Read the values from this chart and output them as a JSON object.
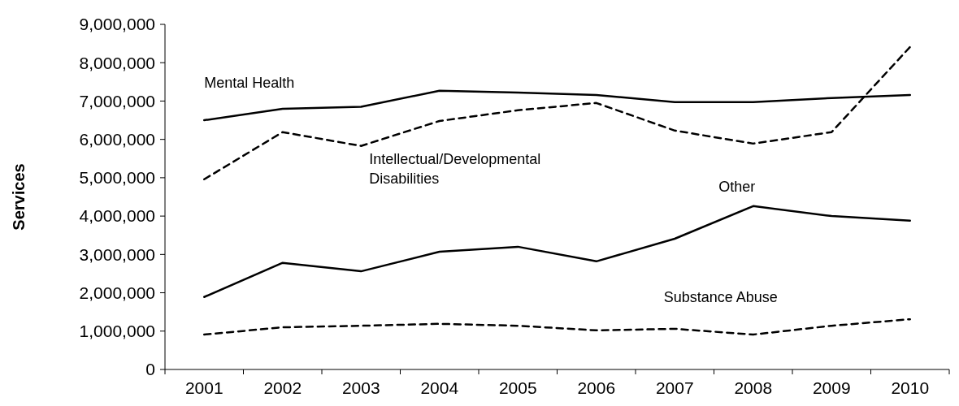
{
  "chart_data": {
    "type": "line",
    "ylabel": "Services",
    "categories": [
      "2001",
      "2002",
      "2003",
      "2004",
      "2005",
      "2006",
      "2007",
      "2008",
      "2009",
      "2010"
    ],
    "ylim": [
      0,
      9000000
    ],
    "yticks": [
      {
        "value": 0,
        "label": "0"
      },
      {
        "value": 1000000,
        "label": "1,000,000"
      },
      {
        "value": 2000000,
        "label": "2,000,000"
      },
      {
        "value": 3000000,
        "label": "3,000,000"
      },
      {
        "value": 4000000,
        "label": "4,000,000"
      },
      {
        "value": 5000000,
        "label": "5,000,000"
      },
      {
        "value": 6000000,
        "label": "6,000,000"
      },
      {
        "value": 7000000,
        "label": "7,000,000"
      },
      {
        "value": 8000000,
        "label": "8,000,000"
      },
      {
        "value": 9000000,
        "label": "9,000,000"
      }
    ],
    "grid": false,
    "marker": "none",
    "series": [
      {
        "name": "Mental Health",
        "color": "#000000",
        "line_style": "solid",
        "values": [
          6500000,
          6800000,
          6850000,
          7270000,
          7220000,
          7160000,
          6970000,
          6970000,
          7080000,
          7160000
        ]
      },
      {
        "name": "Intellectual/Developmental Disabilities",
        "color": "#000000",
        "line_style": "dashed",
        "values": [
          4960000,
          6190000,
          5830000,
          6480000,
          6760000,
          6950000,
          6230000,
          5890000,
          6190000,
          8410000
        ]
      },
      {
        "name": "Other",
        "color": "#000000",
        "line_style": "solid",
        "values": [
          1890000,
          2780000,
          2560000,
          3070000,
          3200000,
          2820000,
          3410000,
          4260000,
          4000000,
          3880000
        ]
      },
      {
        "name": "Substance Abuse",
        "color": "#000000",
        "line_style": "dashed",
        "values": [
          910000,
          1100000,
          1140000,
          1190000,
          1140000,
          1020000,
          1060000,
          910000,
          1140000,
          1310000
        ]
      }
    ]
  }
}
